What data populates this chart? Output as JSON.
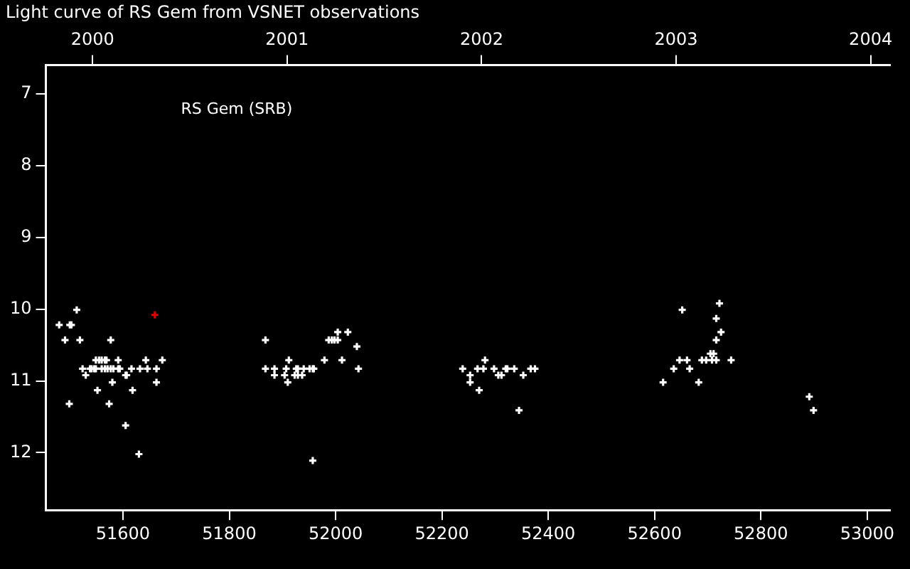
{
  "chart_data": {
    "type": "scatter",
    "title": "Light curve of RS Gem from VSNET observations",
    "annotations": [
      "RS Gem (SRB)"
    ],
    "xlim": [
      51455,
      53043
    ],
    "xticks": [
      51600,
      51800,
      52000,
      52200,
      52400,
      52600,
      52800,
      53000
    ],
    "x2lim": [
      1999.76,
      2004.1
    ],
    "x2ticks": [
      2000,
      2001,
      2002,
      2003,
      2004
    ],
    "ylim": [
      12.8,
      6.6
    ],
    "yticks": [
      7,
      8,
      9,
      10,
      11,
      12
    ],
    "grid": false,
    "legend": false,
    "marker": "cross",
    "series": [
      {
        "color": "#ffffff",
        "x": [
          51513,
          51480,
          51500,
          51503,
          51491,
          51519,
          51577,
          51549,
          51555,
          51560,
          51566,
          51569,
          51591,
          51643,
          51674,
          51524,
          51538,
          51541,
          51546,
          51549,
          51560,
          51566,
          51571,
          51577,
          51582,
          51591,
          51594,
          51616,
          51632,
          51646,
          51663,
          51530,
          51605,
          51607,
          51580,
          51663,
          51552,
          51618,
          51499,
          51574,
          51605,
          51630,
          51957,
          52004,
          52023,
          51868,
          51987,
          51993,
          51998,
          52004,
          52040,
          51912,
          51979,
          52012,
          51868,
          51885,
          51907,
          51926,
          51929,
          51940,
          51951,
          51957,
          51959,
          52043,
          51885,
          51904,
          51923,
          51929,
          51937,
          51910,
          52281,
          52239,
          52267,
          52278,
          52298,
          52320,
          52323,
          52336,
          52367,
          52375,
          52253,
          52306,
          52312,
          52353,
          52253,
          52270,
          52345,
          52722,
          52652,
          52716,
          52725,
          52716,
          52705,
          52711,
          52647,
          52661,
          52689,
          52697,
          52708,
          52716,
          52744,
          52636,
          52666,
          52616,
          52683,
          52891,
          52899
        ],
        "values": [
          10.01,
          10.22,
          10.22,
          10.22,
          10.43,
          10.43,
          10.43,
          10.71,
          10.71,
          10.71,
          10.71,
          10.71,
          10.71,
          10.71,
          10.71,
          10.83,
          10.83,
          10.83,
          10.83,
          10.83,
          10.83,
          10.83,
          10.83,
          10.83,
          10.83,
          10.83,
          10.83,
          10.83,
          10.83,
          10.83,
          10.83,
          10.92,
          10.92,
          10.92,
          11.02,
          11.02,
          11.13,
          11.13,
          11.32,
          11.32,
          11.62,
          12.02,
          12.11,
          10.32,
          10.32,
          10.43,
          10.43,
          10.43,
          10.43,
          10.43,
          10.52,
          10.71,
          10.71,
          10.71,
          10.83,
          10.83,
          10.83,
          10.83,
          10.83,
          10.83,
          10.83,
          10.83,
          10.83,
          10.83,
          10.92,
          10.92,
          10.92,
          10.92,
          10.92,
          11.02,
          10.71,
          10.83,
          10.83,
          10.83,
          10.83,
          10.83,
          10.83,
          10.83,
          10.83,
          10.83,
          10.92,
          10.92,
          10.92,
          10.92,
          11.02,
          11.13,
          11.41,
          9.92,
          10.01,
          10.13,
          10.32,
          10.43,
          10.62,
          10.62,
          10.71,
          10.71,
          10.71,
          10.71,
          10.71,
          10.71,
          10.71,
          10.83,
          10.83,
          11.02,
          11.02,
          11.22,
          11.41
        ]
      },
      {
        "color": "#e00000",
        "x": [
          51660
        ],
        "values": [
          10.08
        ]
      }
    ]
  }
}
